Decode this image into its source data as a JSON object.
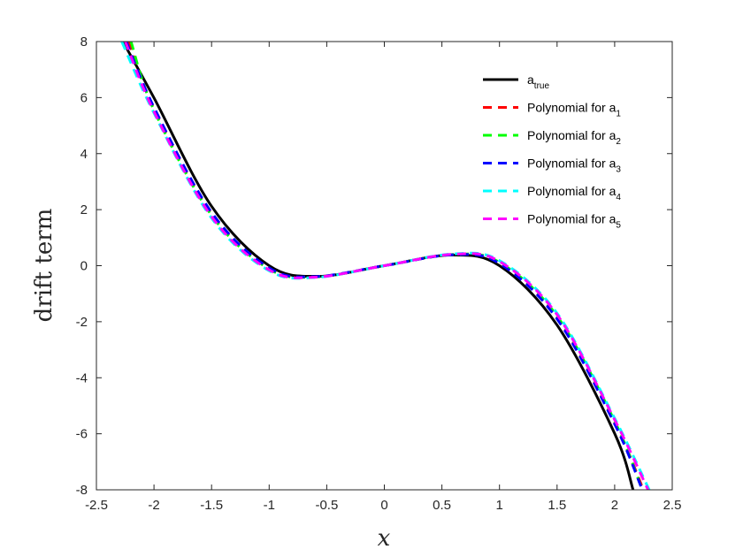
{
  "chart_data": {
    "type": "line",
    "xlabel": "x",
    "ylabel": "drift term",
    "xlim": [
      -2.5,
      2.5
    ],
    "ylim": [
      -8,
      8
    ],
    "xticks": [
      "-2.5",
      "-2",
      "-1.5",
      "-1",
      "-0.5",
      "0",
      "0.5",
      "1",
      "1.5",
      "2",
      "2.5"
    ],
    "yticks": [
      "-8",
      "-6",
      "-4",
      "-2",
      "0",
      "2",
      "4",
      "6",
      "8"
    ],
    "grid": false,
    "legend_position": "top-right",
    "series": [
      {
        "name_base": "a",
        "name_sub": "true",
        "color": "#000000",
        "style": "solid",
        "x": [
          -2.27,
          -2.0,
          -1.5,
          -1.0,
          -0.577,
          0.0,
          0.577,
          1.0,
          1.5,
          2.0,
          2.16
        ],
        "y": [
          8.0,
          5.99,
          2.12,
          0.0,
          -0.38,
          0.0,
          0.38,
          0.0,
          -2.12,
          -5.99,
          -8.0
        ]
      },
      {
        "name_base": "Polynomial for a",
        "name_sub": "1",
        "color": "#ff0000",
        "style": "dashed",
        "x": [
          -2.22,
          -2.0,
          -1.5,
          -1.0,
          -0.6,
          0.0,
          0.6,
          1.0,
          1.5,
          2.0,
          2.25
        ],
        "y": [
          8.0,
          5.6,
          1.85,
          -0.1,
          -0.4,
          0.0,
          0.4,
          0.1,
          -1.85,
          -5.6,
          -8.0
        ]
      },
      {
        "name_base": "Polynomial for a",
        "name_sub": "2",
        "color": "#00ff00",
        "style": "dashed",
        "x": [
          -2.2,
          -2.0,
          -1.5,
          -1.0,
          -0.6,
          0.0,
          0.6,
          1.0,
          1.5,
          2.0,
          2.24
        ],
        "y": [
          8.0,
          5.55,
          1.8,
          -0.12,
          -0.4,
          0.0,
          0.4,
          0.12,
          -1.8,
          -5.55,
          -8.0
        ]
      },
      {
        "name_base": "Polynomial for a",
        "name_sub": "3",
        "color": "#0000ff",
        "style": "dashed",
        "x": [
          -2.24,
          -2.0,
          -1.5,
          -1.0,
          -0.6,
          0.0,
          0.6,
          1.0,
          1.5,
          2.0,
          2.24
        ],
        "y": [
          8.0,
          5.65,
          1.9,
          -0.08,
          -0.39,
          0.0,
          0.39,
          0.08,
          -1.9,
          -5.65,
          -8.0
        ]
      },
      {
        "name_base": "Polynomial for a",
        "name_sub": "4",
        "color": "#00ffff",
        "style": "dashed",
        "x": [
          -2.28,
          -2.0,
          -1.5,
          -1.0,
          -0.6,
          0.0,
          0.6,
          1.0,
          1.5,
          2.0,
          2.3
        ],
        "y": [
          8.0,
          5.45,
          1.7,
          -0.18,
          -0.42,
          0.0,
          0.42,
          0.18,
          -1.7,
          -5.45,
          -8.0
        ]
      },
      {
        "name_base": "Polynomial for a",
        "name_sub": "5",
        "color": "#ff00ff",
        "style": "dashed",
        "x": [
          -2.25,
          -2.0,
          -1.5,
          -1.0,
          -0.6,
          0.0,
          0.6,
          1.0,
          1.5,
          2.0,
          2.29
        ],
        "y": [
          8.0,
          5.5,
          1.75,
          -0.15,
          -0.41,
          0.0,
          0.41,
          0.15,
          -1.75,
          -5.5,
          -8.0
        ]
      }
    ]
  }
}
